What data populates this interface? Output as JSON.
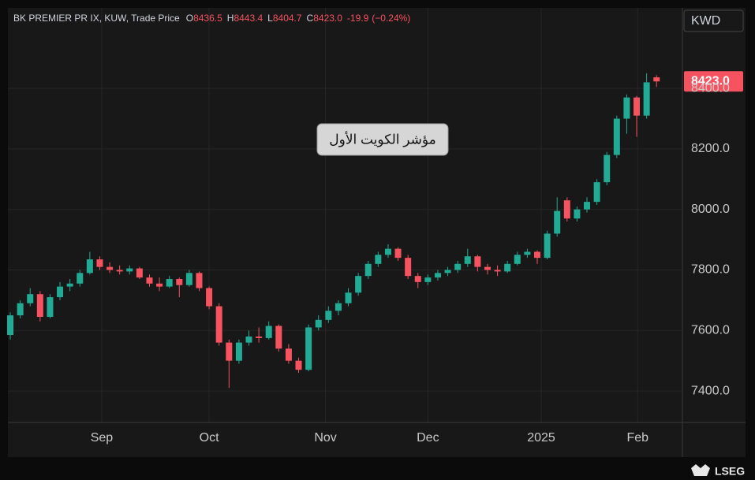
{
  "chart_data": {
    "type": "candlestick",
    "title": "BK PREMIER PR IX, KUW, Trade Price",
    "ohlc_labels": [
      "O",
      "H",
      "L",
      "C"
    ],
    "last_label": "8423.0",
    "change": -19.9,
    "change_label": "(−0.24%)",
    "currency": "KWD",
    "annotation": "مؤشر الكويت الأول",
    "watermark": "LSEG",
    "up_color": "#22ab94",
    "down_color": "#f7525f",
    "grid": true,
    "xlim": [
      -0.24,
      67.6
    ],
    "xticks": [
      {
        "value": 9.2,
        "label": "Sep"
      },
      {
        "value": 20,
        "label": "Oct"
      },
      {
        "value": 31.7,
        "label": "Nov"
      },
      {
        "value": 42,
        "label": "Dec"
      },
      {
        "value": 53.4,
        "label": "2025"
      },
      {
        "value": 63.1,
        "label": "Feb"
      }
    ],
    "ylim": [
      7296,
      8666
    ],
    "yticks": [
      {
        "value": 7400,
        "label": "7400.0"
      },
      {
        "value": 7600,
        "label": "7600.0"
      },
      {
        "value": 7800,
        "label": "7800.0"
      },
      {
        "value": 8000,
        "label": "8000.0"
      },
      {
        "value": 8200,
        "label": "8200.0"
      },
      {
        "value": 8400,
        "label": "8400.0"
      }
    ],
    "ohlc": [
      [
        7585,
        7660,
        7570,
        7650
      ],
      [
        7650,
        7700,
        7640,
        7690
      ],
      [
        7690,
        7740,
        7680,
        7720
      ],
      [
        7720,
        7730,
        7630,
        7645
      ],
      [
        7645,
        7720,
        7640,
        7710
      ],
      [
        7710,
        7760,
        7700,
        7745
      ],
      [
        7745,
        7770,
        7730,
        7755
      ],
      [
        7755,
        7800,
        7745,
        7790
      ],
      [
        7790,
        7860,
        7785,
        7835
      ],
      [
        7835,
        7845,
        7800,
        7810
      ],
      [
        7810,
        7825,
        7790,
        7800
      ],
      [
        7800,
        7815,
        7785,
        7795
      ],
      [
        7795,
        7815,
        7785,
        7805
      ],
      [
        7805,
        7810,
        7770,
        7775
      ],
      [
        7775,
        7785,
        7745,
        7755
      ],
      [
        7755,
        7775,
        7730,
        7745
      ],
      [
        7745,
        7780,
        7740,
        7770
      ],
      [
        7770,
        7775,
        7710,
        7750
      ],
      [
        7750,
        7800,
        7745,
        7790
      ],
      [
        7790,
        7795,
        7730,
        7740
      ],
      [
        7740,
        7745,
        7670,
        7680
      ],
      [
        7680,
        7690,
        7550,
        7560
      ],
      [
        7560,
        7570,
        7410,
        7500
      ],
      [
        7500,
        7570,
        7490,
        7560
      ],
      [
        7560,
        7600,
        7550,
        7580
      ],
      [
        7580,
        7610,
        7560,
        7575
      ],
      [
        7575,
        7630,
        7570,
        7615
      ],
      [
        7615,
        7620,
        7530,
        7540
      ],
      [
        7540,
        7555,
        7490,
        7500
      ],
      [
        7500,
        7510,
        7460,
        7470
      ],
      [
        7470,
        7620,
        7465,
        7610
      ],
      [
        7610,
        7650,
        7600,
        7635
      ],
      [
        7635,
        7680,
        7625,
        7665
      ],
      [
        7665,
        7700,
        7650,
        7690
      ],
      [
        7690,
        7740,
        7680,
        7725
      ],
      [
        7725,
        7790,
        7715,
        7780
      ],
      [
        7780,
        7830,
        7770,
        7820
      ],
      [
        7820,
        7860,
        7810,
        7850
      ],
      [
        7850,
        7885,
        7840,
        7870
      ],
      [
        7870,
        7875,
        7830,
        7840
      ],
      [
        7840,
        7850,
        7770,
        7780
      ],
      [
        7780,
        7790,
        7740,
        7760
      ],
      [
        7760,
        7785,
        7750,
        7775
      ],
      [
        7775,
        7800,
        7765,
        7790
      ],
      [
        7790,
        7810,
        7780,
        7800
      ],
      [
        7800,
        7830,
        7790,
        7820
      ],
      [
        7820,
        7870,
        7810,
        7845
      ],
      [
        7845,
        7850,
        7795,
        7810
      ],
      [
        7810,
        7820,
        7785,
        7800
      ],
      [
        7800,
        7815,
        7780,
        7795
      ],
      [
        7795,
        7830,
        7790,
        7820
      ],
      [
        7820,
        7860,
        7815,
        7850
      ],
      [
        7850,
        7870,
        7840,
        7860
      ],
      [
        7860,
        7865,
        7820,
        7840
      ],
      [
        7840,
        7930,
        7835,
        7920
      ],
      [
        7920,
        8040,
        7910,
        7995
      ],
      [
        8030,
        8040,
        7960,
        7970
      ],
      [
        7970,
        8010,
        7960,
        8000
      ],
      [
        8000,
        8040,
        7990,
        8025
      ],
      [
        8025,
        8100,
        8015,
        8090
      ],
      [
        8090,
        8190,
        8080,
        8180
      ],
      [
        8180,
        8310,
        8170,
        8300
      ],
      [
        8300,
        8380,
        8250,
        8370
      ],
      [
        8370,
        8375,
        8240,
        8310
      ],
      [
        8310,
        8450,
        8300,
        8420
      ],
      [
        8436.5,
        8443.4,
        8404.7,
        8423.0
      ]
    ]
  }
}
